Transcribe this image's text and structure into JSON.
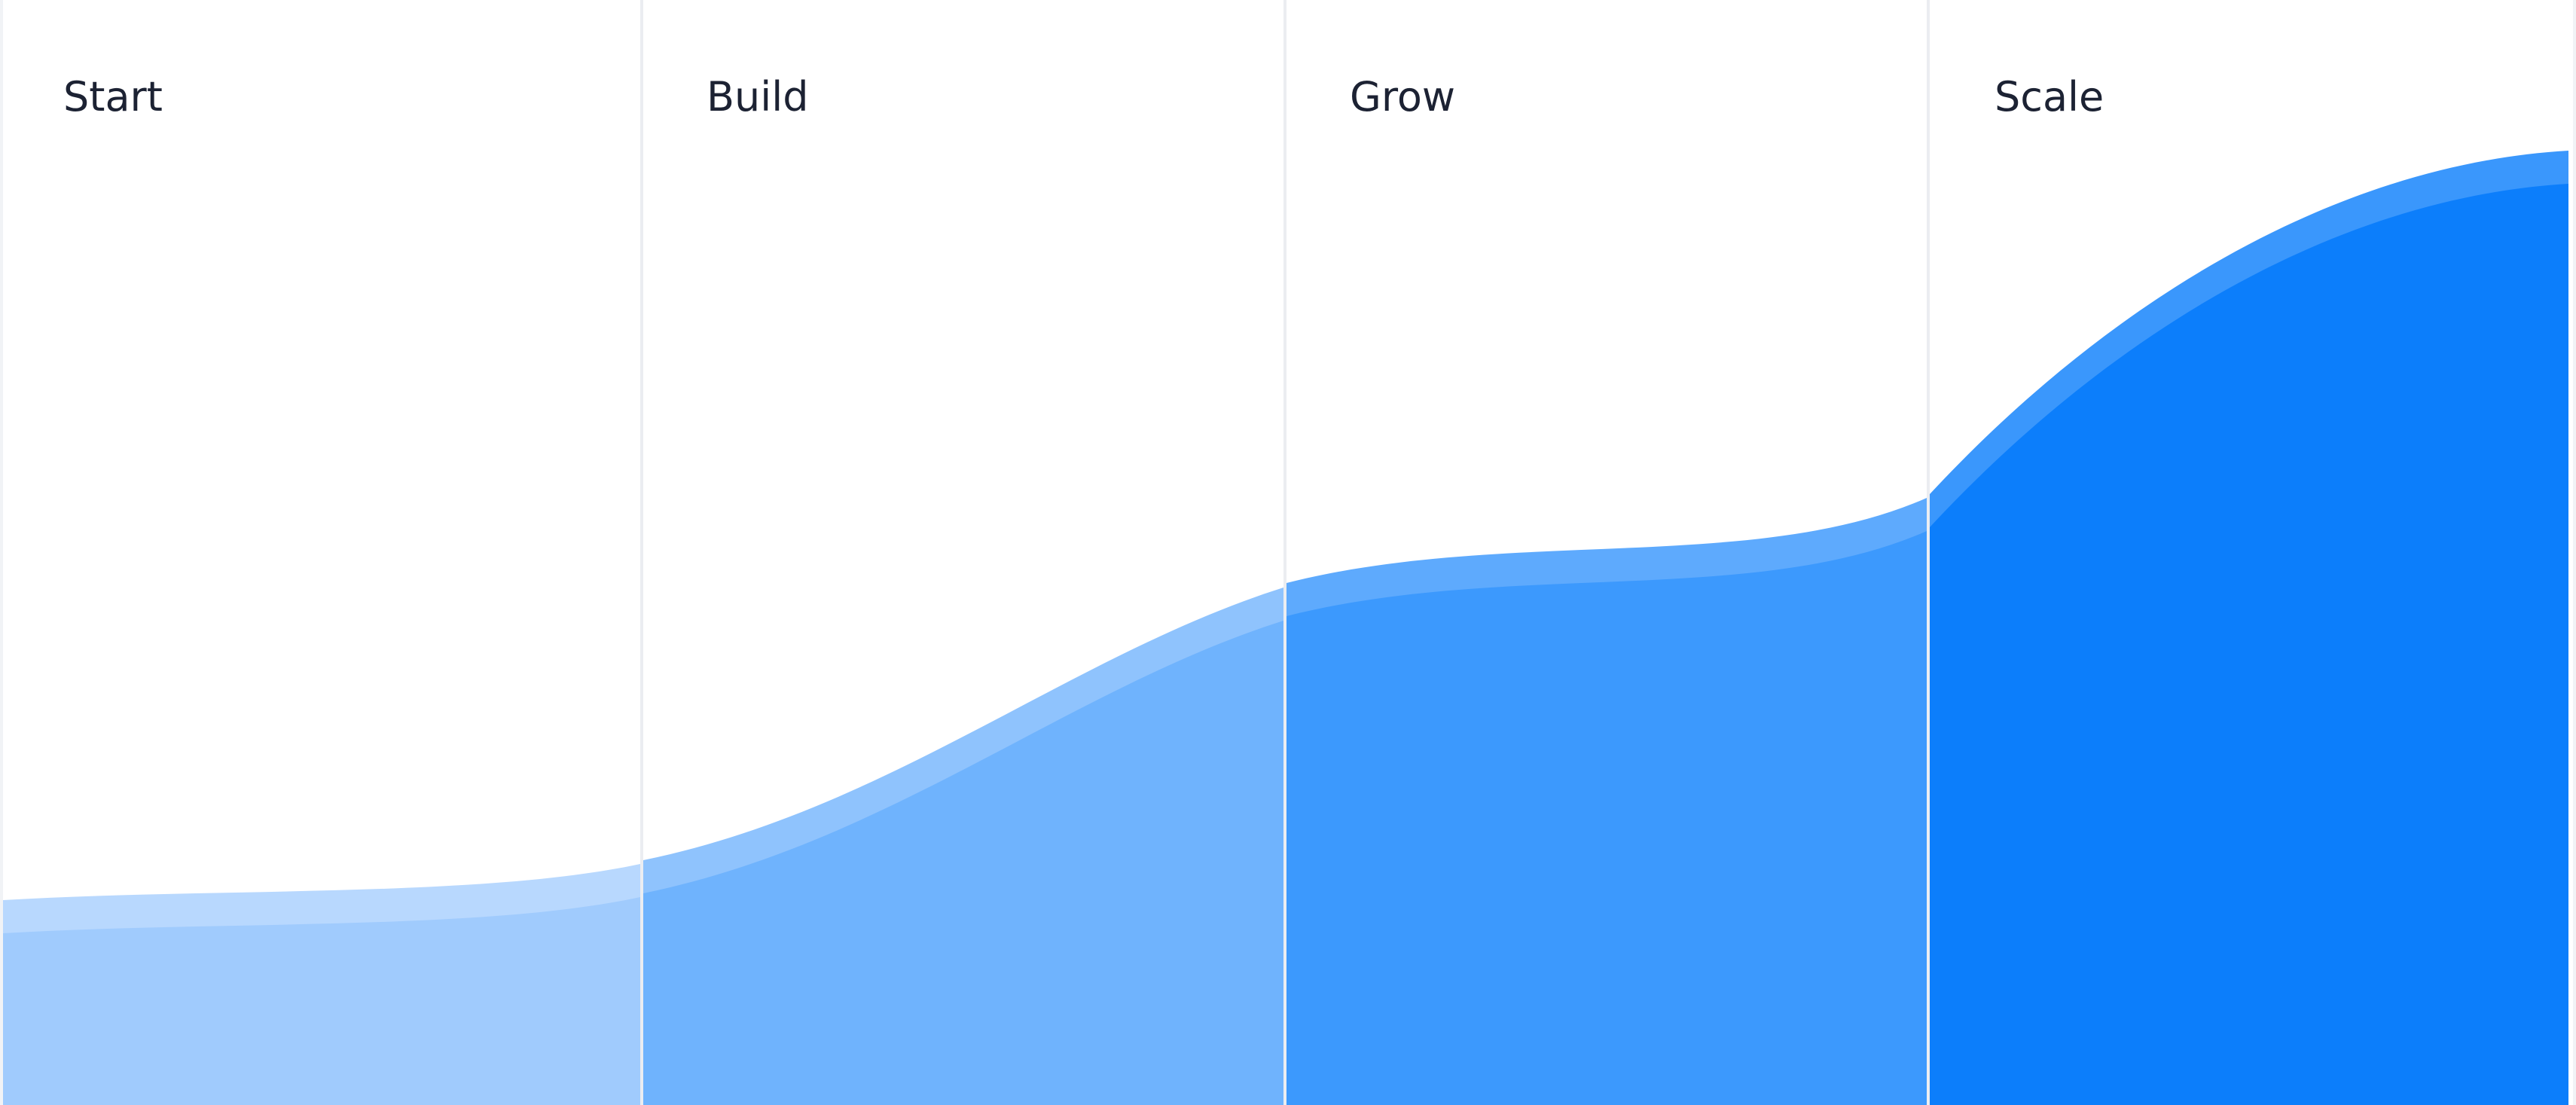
{
  "stages": [
    {
      "label": "Start",
      "fill": "#a0cbfd",
      "band": "#b8d8fe"
    },
    {
      "label": "Build",
      "fill": "#6fb3fd",
      "band": "#8fc3fd"
    },
    {
      "label": "Grow",
      "fill": "#3c99fd",
      "band": "#5eaafd"
    },
    {
      "label": "Scale",
      "fill": "#0c7efb",
      "band": "#3a97fc"
    }
  ],
  "colors": {
    "page_background": "#f1f3f6",
    "panel_background": "#ffffff",
    "divider": "#ebedf1",
    "label_text": "#1c2233"
  }
}
